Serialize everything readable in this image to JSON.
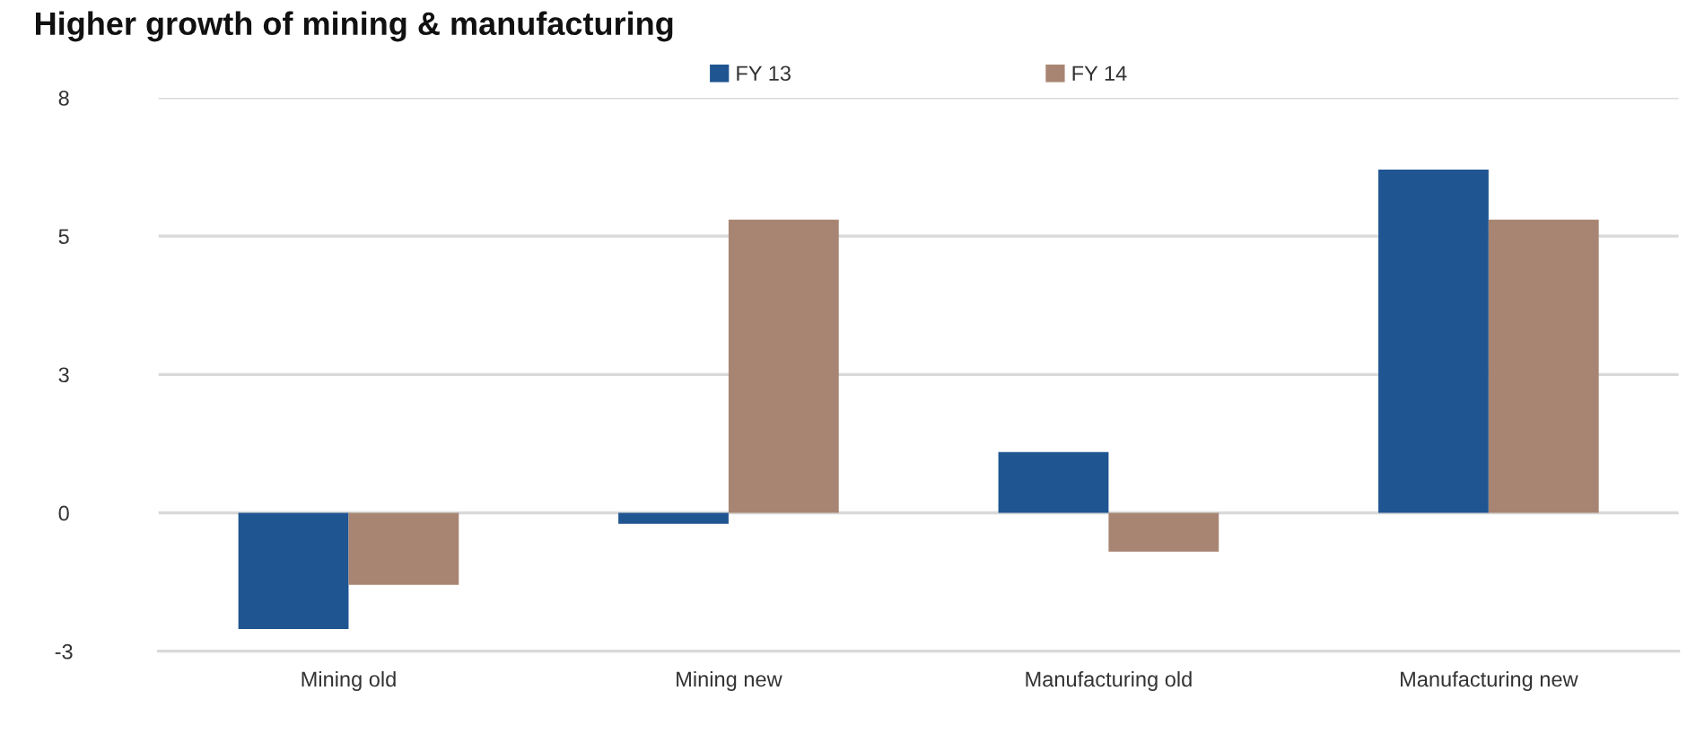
{
  "chart_data": {
    "type": "bar",
    "title": "Higher growth of mining & manufacturing",
    "categories": [
      "Mining old",
      "Mining new",
      "Manufacturing old",
      "Manufacturing new"
    ],
    "series": [
      {
        "name": "FY 13",
        "color": "#1f5591",
        "values": [
          -2.1,
          -0.2,
          1.1,
          6.2
        ]
      },
      {
        "name": "FY 14",
        "color": "#a88573",
        "values": [
          -1.3,
          5.3,
          -0.7,
          5.3
        ]
      }
    ],
    "ylim": [
      -2.5,
      7.5
    ],
    "yticks": [
      {
        "value": -2.5,
        "label": "-3"
      },
      0,
      {
        "value": 2.5,
        "label": "3"
      },
      5,
      {
        "value": 7.5,
        "label": "8"
      }
    ],
    "grid": "y",
    "legend": "top"
  }
}
